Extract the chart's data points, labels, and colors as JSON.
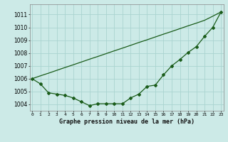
{
  "title": "Graphe pression niveau de la mer (hPa)",
  "bg_color": "#cceae7",
  "grid_color": "#aad4d0",
  "line_color": "#1a5c1a",
  "x_labels": [
    "0",
    "1",
    "2",
    "3",
    "4",
    "5",
    "6",
    "7",
    "8",
    "9",
    "10",
    "11",
    "12",
    "13",
    "14",
    "15",
    "16",
    "17",
    "18",
    "19",
    "20",
    "21",
    "22",
    "23"
  ],
  "ylim": [
    1003.5,
    1011.8
  ],
  "yticks": [
    1004,
    1005,
    1006,
    1007,
    1008,
    1009,
    1010,
    1011
  ],
  "curve_y": [
    1006.0,
    1005.6,
    1004.9,
    1004.8,
    1004.7,
    1004.5,
    1004.2,
    1003.9,
    1004.05,
    1004.05,
    1004.05,
    1004.05,
    1004.5,
    1004.8,
    1005.4,
    1005.5,
    1006.3,
    1007.0,
    1007.5,
    1008.05,
    1008.5,
    1009.3,
    1010.0,
    1011.2
  ],
  "straight_y": [
    1006.0,
    1006.22,
    1006.43,
    1006.65,
    1006.87,
    1007.08,
    1007.3,
    1007.52,
    1007.73,
    1007.95,
    1008.17,
    1008.38,
    1008.6,
    1008.82,
    1009.03,
    1009.25,
    1009.47,
    1009.68,
    1009.9,
    1010.12,
    1010.33,
    1010.55,
    1010.87,
    1011.2
  ]
}
